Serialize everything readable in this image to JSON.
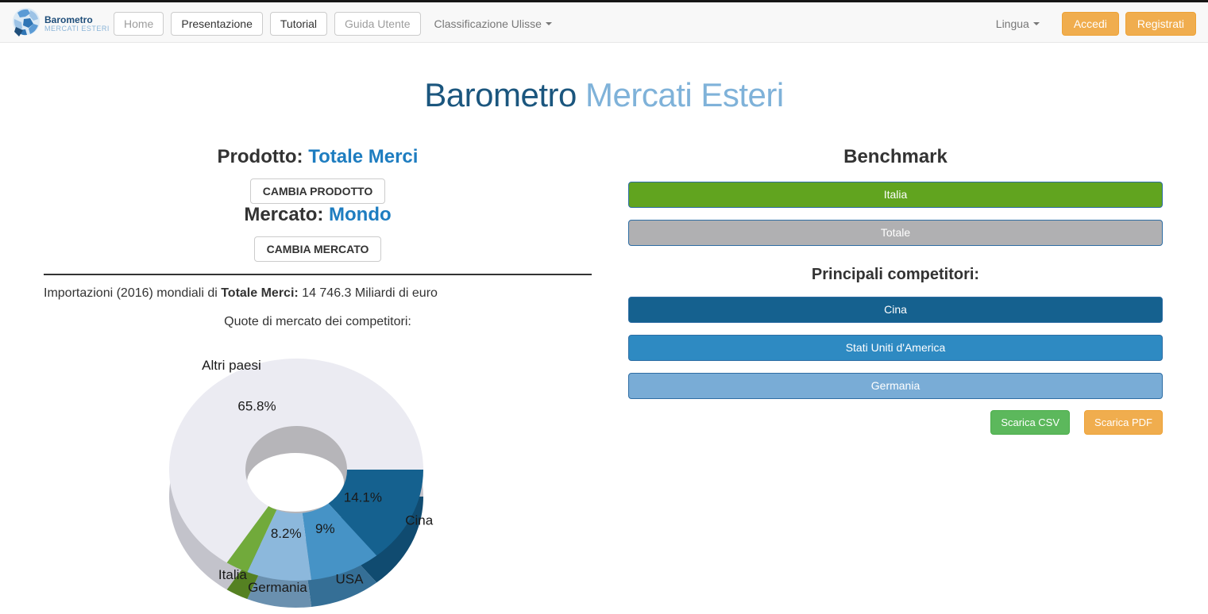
{
  "navbar": {
    "brand": {
      "title": "Barometro",
      "subtitle": "MERCATI ESTERI"
    },
    "menu": [
      {
        "label": "Home",
        "muted": true
      },
      {
        "label": "Presentazione",
        "muted": false
      },
      {
        "label": "Tutorial",
        "muted": false
      },
      {
        "label": "Guida Utente",
        "muted": true
      }
    ],
    "classification_dropdown": "Classificazione Ulisse",
    "language_dropdown": "Lingua",
    "login_button": "Accedi",
    "register_button": "Registrati",
    "accent_color": "#f0ad4e"
  },
  "header": {
    "title_primary": "Barometro",
    "title_secondary": "Mercati Esteri"
  },
  "product_panel": {
    "product_label": "Prodotto:",
    "product_value": "Totale Merci",
    "change_product_button": "CAMBIA PRODOTTO",
    "market_label": "Mercato:",
    "market_value": "Mondo",
    "change_market_button": "CAMBIA MERCATO",
    "imports_line_prefix": "Importazioni (2016) mondiali di ",
    "imports_line_bold": "Totale Merci:",
    "imports_line_suffix": " 14 746.3 Miliardi di euro",
    "chart_caption": "Quote di mercato dei competitori:"
  },
  "chart_data": {
    "type": "pie",
    "subtype": "3d-donut",
    "title": "Quote di mercato dei competitori",
    "unit": "%",
    "start_angle_deg": 0,
    "direction": "clockwise",
    "slices": [
      {
        "label": "Cina",
        "value": 14.1,
        "pct_label": "14.1%",
        "color": "#15618f",
        "depth_color": "#104b70"
      },
      {
        "label": "USA",
        "value": 9,
        "pct_label": "9%",
        "color": "#4693c6",
        "depth_color": "#356f96"
      },
      {
        "label": "Germania",
        "value": 8.2,
        "pct_label": "8.2%",
        "color": "#8cb8dc",
        "depth_color": "#6a90af"
      },
      {
        "label": "Italia",
        "value": 2.9,
        "pct_label": null,
        "color": "#71aa3b",
        "depth_color": "#558122"
      },
      {
        "label": "Altri paesi",
        "value": 65.8,
        "pct_label": "65.8%",
        "color": "#ebebf2",
        "depth_color": "#c3c3cb"
      }
    ],
    "inner_wall_color": "#b6b5b9",
    "hole_color": "#ffffff"
  },
  "benchmark_panel": {
    "title": "Benchmark",
    "benchmarks": [
      {
        "label": "Italia",
        "color": "#61a41f"
      },
      {
        "label": "Totale",
        "color": "#b0b0b2"
      }
    ],
    "competitors_title": "Principali competitori:",
    "competitors": [
      {
        "label": "Cina",
        "color": "#15618f"
      },
      {
        "label": "Stati Uniti d'America",
        "color": "#2e8ac2"
      },
      {
        "label": "Germania",
        "color": "#79acd6"
      }
    ],
    "downloads": [
      {
        "label": "Scarica CSV",
        "color": "#5cb85c",
        "border": "#4cae4c"
      },
      {
        "label": "Scarica PDF",
        "color": "#f0ad4e",
        "border": "#eea236"
      }
    ]
  }
}
